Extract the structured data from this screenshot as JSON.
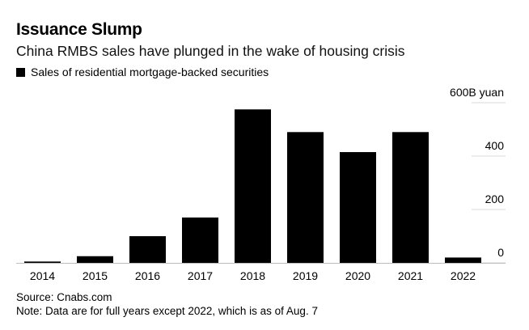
{
  "header": {
    "title": "Issuance Slump",
    "subtitle": "China RMBS sales have plunged in the wake of housing crisis"
  },
  "legend": {
    "label": "Sales of residential mortgage-backed securities"
  },
  "footer": {
    "source": "Source: Cnabs.com",
    "note": "Note: Data are for full years except 2022, which is as of Aug. 7"
  },
  "chart_data": {
    "type": "bar",
    "title": "Issuance Slump",
    "subtitle": "China RMBS sales have plunged in the wake of housing crisis",
    "xlabel": "",
    "ylabel": "",
    "categories": [
      "2014",
      "2015",
      "2016",
      "2017",
      "2018",
      "2019",
      "2020",
      "2021",
      "2022"
    ],
    "series": [
      {
        "name": "Sales of residential mortgage-backed securities",
        "values": [
          5,
          25,
          100,
          170,
          575,
          490,
          415,
          490,
          20
        ],
        "color": "#000000"
      }
    ],
    "ylim": [
      0,
      600
    ],
    "yticks": [
      0,
      200,
      400,
      600
    ],
    "ytick_labels": [
      "0",
      "200",
      "400",
      "600B yuan"
    ],
    "y_axis_position": "right",
    "grid": true
  }
}
